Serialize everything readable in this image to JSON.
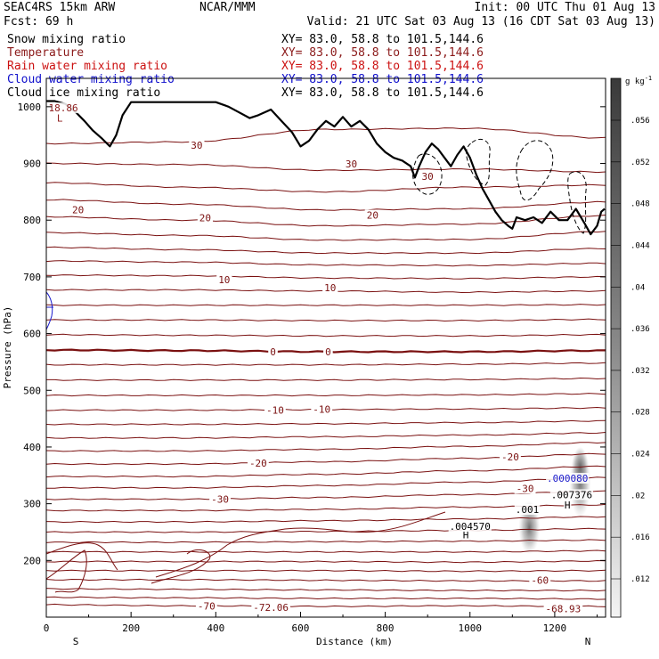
{
  "header": {
    "model": "SEAC4RS 15km ARW",
    "center": "NCAR/MMM",
    "init": "Init: 00 UTC Thu 01 Aug 13",
    "fcst": "Fcst:   69 h",
    "valid": "Valid: 21 UTC Sat 03 Aug 13 (16 CDT Sat 03 Aug 13)"
  },
  "legend": [
    {
      "label": "Snow mixing ratio",
      "xy": "XY=  83.0, 58.8 to 101.5,144.6",
      "color": "#000000"
    },
    {
      "label": "Temperature",
      "xy": "XY=  83.0, 58.8 to 101.5,144.6",
      "color": "#8b1a1a"
    },
    {
      "label": "Rain water mixing ratio",
      "xy": "XY=  83.0, 58.8 to 101.5,144.6",
      "color": "#cc1111"
    },
    {
      "label": "Cloud water mixing ratio",
      "xy": "XY=  83.0, 58.8 to 101.5,144.6",
      "color": "#1111cc"
    },
    {
      "label": "Cloud ice mixing ratio",
      "xy": "XY=  83.0, 58.8 to 101.5,144.6",
      "color": "#000000"
    }
  ],
  "colors": {
    "temperature": "#7a1010",
    "terrain": "#000000",
    "cloud_water": "#1a1acc",
    "snow_shade": "#555555"
  },
  "chart_data": {
    "type": "contour-cross-section",
    "xlabel": "Distance (km)",
    "ylabel": "Pressure (hPa)",
    "xlim": [
      0,
      1320
    ],
    "ylim": [
      1050,
      100
    ],
    "x_ticks": [
      0,
      200,
      400,
      600,
      800,
      1000,
      1200
    ],
    "y_ticks": [
      200,
      300,
      400,
      500,
      600,
      700,
      800,
      900,
      1000
    ],
    "endpoints": {
      "left": "S",
      "right": "N"
    },
    "colorbar": {
      "unit": "g kg",
      "unit_sup": "-1",
      "ticks": [
        ".056",
        ".052",
        ".048",
        ".044",
        ".04",
        ".036",
        ".032",
        ".028",
        ".024",
        ".02",
        ".016",
        ".012"
      ]
    },
    "terrain": {
      "x": [
        0,
        20,
        45,
        70,
        90,
        110,
        130,
        150,
        165,
        180,
        200,
        230,
        300,
        400,
        430,
        455,
        480,
        500,
        530,
        555,
        580,
        600,
        620,
        640,
        660,
        680,
        700,
        720,
        740,
        760,
        780,
        800,
        820,
        840,
        860,
        870,
        880,
        895,
        910,
        925,
        940,
        955,
        970,
        985,
        1000,
        1015,
        1030,
        1045,
        1060,
        1075,
        1090,
        1100,
        1110,
        1130,
        1150,
        1170,
        1190,
        1210,
        1230,
        1250,
        1270,
        1285,
        1300,
        1310,
        1318
      ],
      "p": [
        1010,
        1010,
        1005,
        990,
        975,
        958,
        945,
        930,
        950,
        985,
        1008,
        1008,
        1008,
        1008,
        1000,
        990,
        980,
        985,
        995,
        975,
        955,
        930,
        940,
        960,
        975,
        965,
        982,
        965,
        975,
        960,
        935,
        920,
        910,
        905,
        895,
        875,
        895,
        920,
        935,
        925,
        910,
        895,
        915,
        930,
        910,
        880,
        855,
        835,
        815,
        800,
        790,
        785,
        805,
        800,
        805,
        795,
        815,
        800,
        800,
        820,
        795,
        775,
        790,
        815,
        820
      ]
    },
    "temperature_contours": [
      {
        "label": "-70",
        "p": [
          122,
          120,
          119,
          120,
          119
        ]
      },
      {
        "label": "",
        "p": [
          135,
          134,
          133,
          133,
          132
        ]
      },
      {
        "label": "",
        "p": [
          150,
          149,
          148,
          147,
          147
        ]
      },
      {
        "label": "-60",
        "p": [
          166,
          166,
          165,
          164,
          164
        ]
      },
      {
        "label": "",
        "p": [
          182,
          182,
          182,
          181,
          182
        ]
      },
      {
        "label": "",
        "p": [
          198,
          198,
          198,
          197,
          199
        ]
      },
      {
        "label": "",
        "p": [
          215,
          215,
          215,
          215,
          217
        ]
      },
      {
        "label": "",
        "p": [
          232,
          232,
          233,
          234,
          236
        ]
      },
      {
        "label": "",
        "p": [
          250,
          250,
          251,
          253,
          256
        ]
      },
      {
        "label": "",
        "p": [
          268,
          268,
          270,
          273,
          277
        ]
      },
      {
        "label": "",
        "p": [
          288,
          288,
          290,
          294,
          298
        ]
      },
      {
        "label": "-30",
        "p": [
          308,
          308,
          311,
          316,
          322
        ]
      },
      {
        "label": "",
        "p": [
          328,
          328,
          332,
          338,
          346
        ]
      },
      {
        "label": "",
        "p": [
          348,
          348,
          352,
          358,
          366
        ]
      },
      {
        "label": "-20",
        "p": [
          370,
          370,
          374,
          380,
          388
        ]
      },
      {
        "label": "",
        "p": [
          393,
          393,
          396,
          401,
          408
        ]
      },
      {
        "label": "",
        "p": [
          416,
          416,
          418,
          421,
          425
        ]
      },
      {
        "label": "",
        "p": [
          440,
          440,
          441,
          443,
          446
        ]
      },
      {
        "label": "-10",
        "p": [
          465,
          465,
          466,
          467,
          469
        ]
      },
      {
        "label": "",
        "p": [
          491,
          491,
          491,
          492,
          494
        ]
      },
      {
        "label": "",
        "p": [
          518,
          518,
          518,
          519,
          521
        ]
      },
      {
        "label": "",
        "p": [
          545,
          545,
          545,
          546,
          548
        ]
      },
      {
        "label": "0",
        "p": [
          571,
          570,
          568,
          568,
          570
        ]
      },
      {
        "label": "",
        "p": [
          598,
          597,
          596,
          596,
          598
        ]
      },
      {
        "label": "",
        "p": [
          624,
          624,
          623,
          623,
          625
        ]
      },
      {
        "label": "",
        "p": [
          650,
          650,
          650,
          650,
          651
        ]
      },
      {
        "label": "10",
        "p": [
          677,
          677,
          675,
          673,
          675
        ]
      },
      {
        "label": "",
        "p": [
          703,
          702,
          698,
          697,
          700
        ]
      },
      {
        "label": "",
        "p": [
          728,
          726,
          721,
          720,
          724
        ]
      },
      {
        "label": "",
        "p": [
          752,
          748,
          742,
          742,
          750
        ]
      },
      {
        "label": "",
        "p": [
          778,
          773,
          765,
          766,
          780
        ]
      },
      {
        "label": "20",
        "p": [
          806,
          800,
          790,
          793,
          808
        ]
      },
      {
        "label": "",
        "p": [
          836,
          828,
          818,
          820,
          832
        ]
      },
      {
        "label": "",
        "p": [
          866,
          858,
          850,
          858,
          862
        ]
      },
      {
        "label": "30",
        "p": [
          900,
          898,
          888,
          890,
          885
        ]
      },
      {
        "label": "",
        "p": [
          935,
          938,
          960,
          962,
          945
        ]
      }
    ],
    "temperature_labels": [
      {
        "text": "-70",
        "x": 378,
        "p": 120
      },
      {
        "text": "-72.06",
        "x": 530,
        "p": 117
      },
      {
        "text": "-68.93",
        "x": 1220,
        "p": 115
      },
      {
        "text": "-60",
        "x": 1165,
        "p": 165
      },
      {
        "text": "-30",
        "x": 410,
        "p": 308
      },
      {
        "text": "-20",
        "x": 500,
        "p": 372
      },
      {
        "text": "-20",
        "x": 1095,
        "p": 383
      },
      {
        "text": "-10",
        "x": 540,
        "p": 465
      },
      {
        "text": "-10",
        "x": 650,
        "p": 467
      },
      {
        "text": "0",
        "x": 535,
        "p": 568
      },
      {
        "text": "0",
        "x": 665,
        "p": 568
      },
      {
        "text": "10",
        "x": 420,
        "p": 695
      },
      {
        "text": "10",
        "x": 670,
        "p": 681
      },
      {
        "text": "20",
        "x": 75,
        "p": 818
      },
      {
        "text": "20",
        "x": 375,
        "p": 804
      },
      {
        "text": "20",
        "x": 770,
        "p": 809
      },
      {
        "text": "30",
        "x": 355,
        "p": 932
      },
      {
        "text": "30",
        "x": 720,
        "p": 899
      },
      {
        "text": "30",
        "x": 900,
        "p": 877
      },
      {
        "text": "-30",
        "x": 1130,
        "p": 327
      }
    ],
    "annotations": [
      {
        "text": "H",
        "x": 990,
        "p": 245,
        "color": "#000000"
      },
      {
        "text": ".004570",
        "x": 1000,
        "p": 260,
        "color": "#000000"
      },
      {
        "text": ".001",
        "x": 1135,
        "p": 290,
        "color": "#000000"
      },
      {
        "text": "H",
        "x": 1230,
        "p": 298,
        "color": "#000000"
      },
      {
        "text": ".007376",
        "x": 1240,
        "p": 316,
        "color": "#000000"
      },
      {
        "text": ".000080",
        "x": 1230,
        "p": 345,
        "color": "#1a1acc"
      },
      {
        "text": "L",
        "x": 32,
        "p": 980,
        "color": "#8b1a1a"
      },
      {
        "text": "18.86",
        "x": 40,
        "p": 998,
        "color": "#8b1a1a"
      }
    ]
  }
}
